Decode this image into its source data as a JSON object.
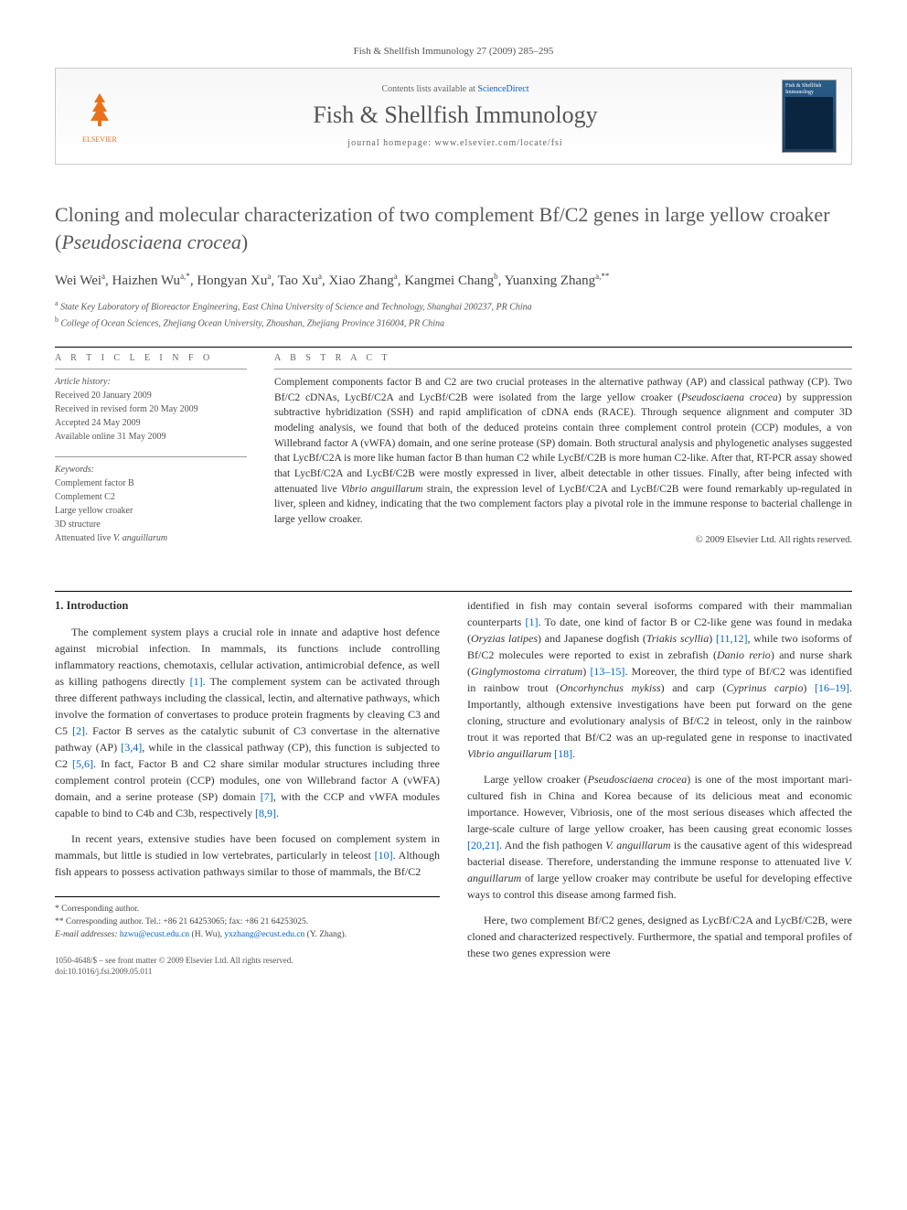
{
  "journal_ref": "Fish & Shellfish Immunology 27 (2009) 285–295",
  "header": {
    "contents_prefix": "Contents lists available at ",
    "contents_link": "ScienceDirect",
    "journal_name": "Fish & Shellfish Immunology",
    "homepage_prefix": "journal homepage: ",
    "homepage_url": "www.elsevier.com/locate/fsi",
    "publisher_label": "ELSEVIER",
    "cover_title": "Fish & Shellfish Immunology"
  },
  "title_pre": "Cloning and molecular characterization of two complement Bf/C2 genes in large yellow croaker (",
  "title_species": "Pseudosciaena crocea",
  "title_post": ")",
  "authors_html": "Wei Wei<sup>a</sup>, Haizhen Wu<sup>a,*</sup>, Hongyan Xu<sup>a</sup>, Tao Xu<sup>a</sup>, Xiao Zhang<sup>a</sup>, Kangmei Chang<sup>b</sup>, Yuanxing Zhang<sup>a,**</sup>",
  "affiliations": {
    "a": "State Key Laboratory of Bioreactor Engineering, East China University of Science and Technology, Shanghai 200237, PR China",
    "b": "College of Ocean Sciences, Zhejiang Ocean University, Zhoushan, Zhejiang Province 316004, PR China"
  },
  "info": {
    "heading": "A R T I C L E  I N F O",
    "history_label": "Article history:",
    "received": "Received 20 January 2009",
    "revised": "Received in revised form 20 May 2009",
    "accepted": "Accepted 24 May 2009",
    "online": "Available online 31 May 2009",
    "keywords_label": "Keywords:",
    "keywords": [
      "Complement factor B",
      "Complement C2",
      "Large yellow croaker",
      "3D structure",
      "Attenuated live V. anguillarum"
    ]
  },
  "abstract": {
    "heading": "A B S T R A C T",
    "text_parts": [
      "Complement components factor B and C2 are two crucial proteases in the alternative pathway (AP) and classical pathway (CP). Two Bf/C2 cDNAs, LycBf/C2A and LycBf/C2B were isolated from the large yellow croaker (",
      ") by suppression subtractive hybridization (SSH) and rapid amplification of cDNA ends (RACE). Through sequence alignment and computer 3D modeling analysis, we found that both of the deduced proteins contain three complement control protein (CCP) modules, a von Willebrand factor A (vWFA) domain, and one serine protease (SP) domain. Both structural analysis and phylogenetic analyses suggested that LycBf/C2A is more like human factor B than human C2 while LycBf/C2B is more human C2-like. After that, RT-PCR assay showed that LycBf/C2A and LycBf/C2B were mostly expressed in liver, albeit detectable in other tissues. Finally, after being infected with attenuated live ",
      " strain, the expression level of LycBf/C2A and LycBf/C2B were found remarkably up-regulated in liver, spleen and kidney, indicating that the two complement factors play a pivotal role in the immune response to bacterial challenge in large yellow croaker."
    ],
    "species1": "Pseudosciaena crocea",
    "species2": "Vibrio anguillarum",
    "copyright": "© 2009 Elsevier Ltd. All rights reserved."
  },
  "body": {
    "section1_heading": "1. Introduction",
    "col1": {
      "p1_a": "The complement system plays a crucial role in innate and adaptive host defence against microbial infection. In mammals, its functions include controlling inflammatory reactions, chemotaxis, cellular activation, antimicrobial defence, as well as killing pathogens directly ",
      "ref1": "[1]",
      "p1_b": ". The complement system can be activated through three different pathways including the classical, lectin, and alternative pathways, which involve the formation of convertases to produce protein fragments by cleaving C3 and C5 ",
      "ref2": "[2]",
      "p1_c": ". Factor B serves as the catalytic subunit of C3 convertase in the alternative pathway (AP) ",
      "ref34": "[3,4]",
      "p1_d": ", while in the classical pathway (CP), this function is subjected to C2 ",
      "ref56": "[5,6]",
      "p1_e": ". In fact, Factor B and C2 share similar modular structures including three complement control protein (CCP) modules, one von Willebrand factor A (vWFA) domain, and a serine protease (SP) domain ",
      "ref7": "[7]",
      "p1_f": ", with the CCP and vWFA modules capable to bind to C4b and C3b, respectively ",
      "ref89": "[8,9]",
      "p1_g": ".",
      "p2_a": "In recent years, extensive studies have been focused on complement system in mammals, but little is studied in low vertebrates, particularly in teleost ",
      "ref10": "[10]",
      "p2_b": ". Although fish appears to possess activation pathways similar to those of mammals, the Bf/C2"
    },
    "col2": {
      "p1_a": "identified in fish may contain several isoforms compared with their mammalian counterparts ",
      "ref1": "[1]",
      "p1_b": ". To date, one kind of factor B or C2-like gene was found in medaka (",
      "sp_medaka": "Oryzias latipes",
      "p1_c": ") and Japanese dogfish (",
      "sp_dogfish": "Triakis scyllia",
      "p1_d": ") ",
      "ref1112": "[11,12]",
      "p1_e": ", while two isoforms of Bf/C2 molecules were reported to exist in zebrafish (",
      "sp_zebra": "Danio rerio",
      "p1_f": ") and nurse shark (",
      "sp_shark": "Ginglymostoma cirratum",
      "p1_g": ") ",
      "ref1315": "[13–15]",
      "p1_h": ". Moreover, the third type of Bf/C2 was identified in rainbow trout (",
      "sp_trout": "Oncorhynchus mykiss",
      "p1_i": ") and carp (",
      "sp_carp": "Cyprinus carpio",
      "p1_j": ") ",
      "ref1619": "[16–19]",
      "p1_k": ". Importantly, although extensive investigations have been put forward on the gene cloning, structure and evolutionary analysis of Bf/C2 in teleost, only in the rainbow trout it was reported that Bf/C2 was an up-regulated gene in response to inactivated ",
      "sp_vibrio": "Vibrio anguillarum",
      "p1_l": " ",
      "ref18": "[18]",
      "p1_m": ".",
      "p2_a": "Large yellow croaker (",
      "sp_croaker": "Pseudosciaena crocea",
      "p2_b": ") is one of the most important mari-cultured fish in China and Korea because of its delicious meat and economic importance. However, Vibriosis, one of the most serious diseases which affected the large-scale culture of large yellow croaker, has been causing great economic losses ",
      "ref2021": "[20,21]",
      "p2_c": ". And the fish pathogen ",
      "sp_vang": "V. anguillarum",
      "p2_d": " is the causative agent of this widespread bacterial disease. Therefore, understanding the immune response to attenuated live ",
      "sp_vang2": "V. anguillarum",
      "p2_e": " of large yellow croaker may contribute be useful for developing effective ways to control this disease among farmed fish.",
      "p3_a": "Here, two complement Bf/C2 genes, designed as LycBf/C2A and LycBf/C2B, were cloned and characterized respectively. Furthermore, the spatial and temporal profiles of these two genes expression were"
    }
  },
  "footnotes": {
    "star": "Corresponding author.",
    "dstar": "Corresponding author. Tel.: +86 21 64253065; fax: +86 21 64253025.",
    "email_label": "E-mail addresses: ",
    "email1": "hzwu@ecust.edu.cn",
    "email1_who": " (H. Wu), ",
    "email2": "yxzhang@ecust.edu.cn",
    "email2_who": " (Y. Zhang)."
  },
  "footer": {
    "issn": "1050-4648/$ – see front matter © 2009 Elsevier Ltd. All rights reserved.",
    "doi": "doi:10.1016/j.fsi.2009.05.011"
  },
  "colors": {
    "link": "#0066cc",
    "elsevier": "#e9711c",
    "text": "#333333",
    "muted": "#666666"
  }
}
